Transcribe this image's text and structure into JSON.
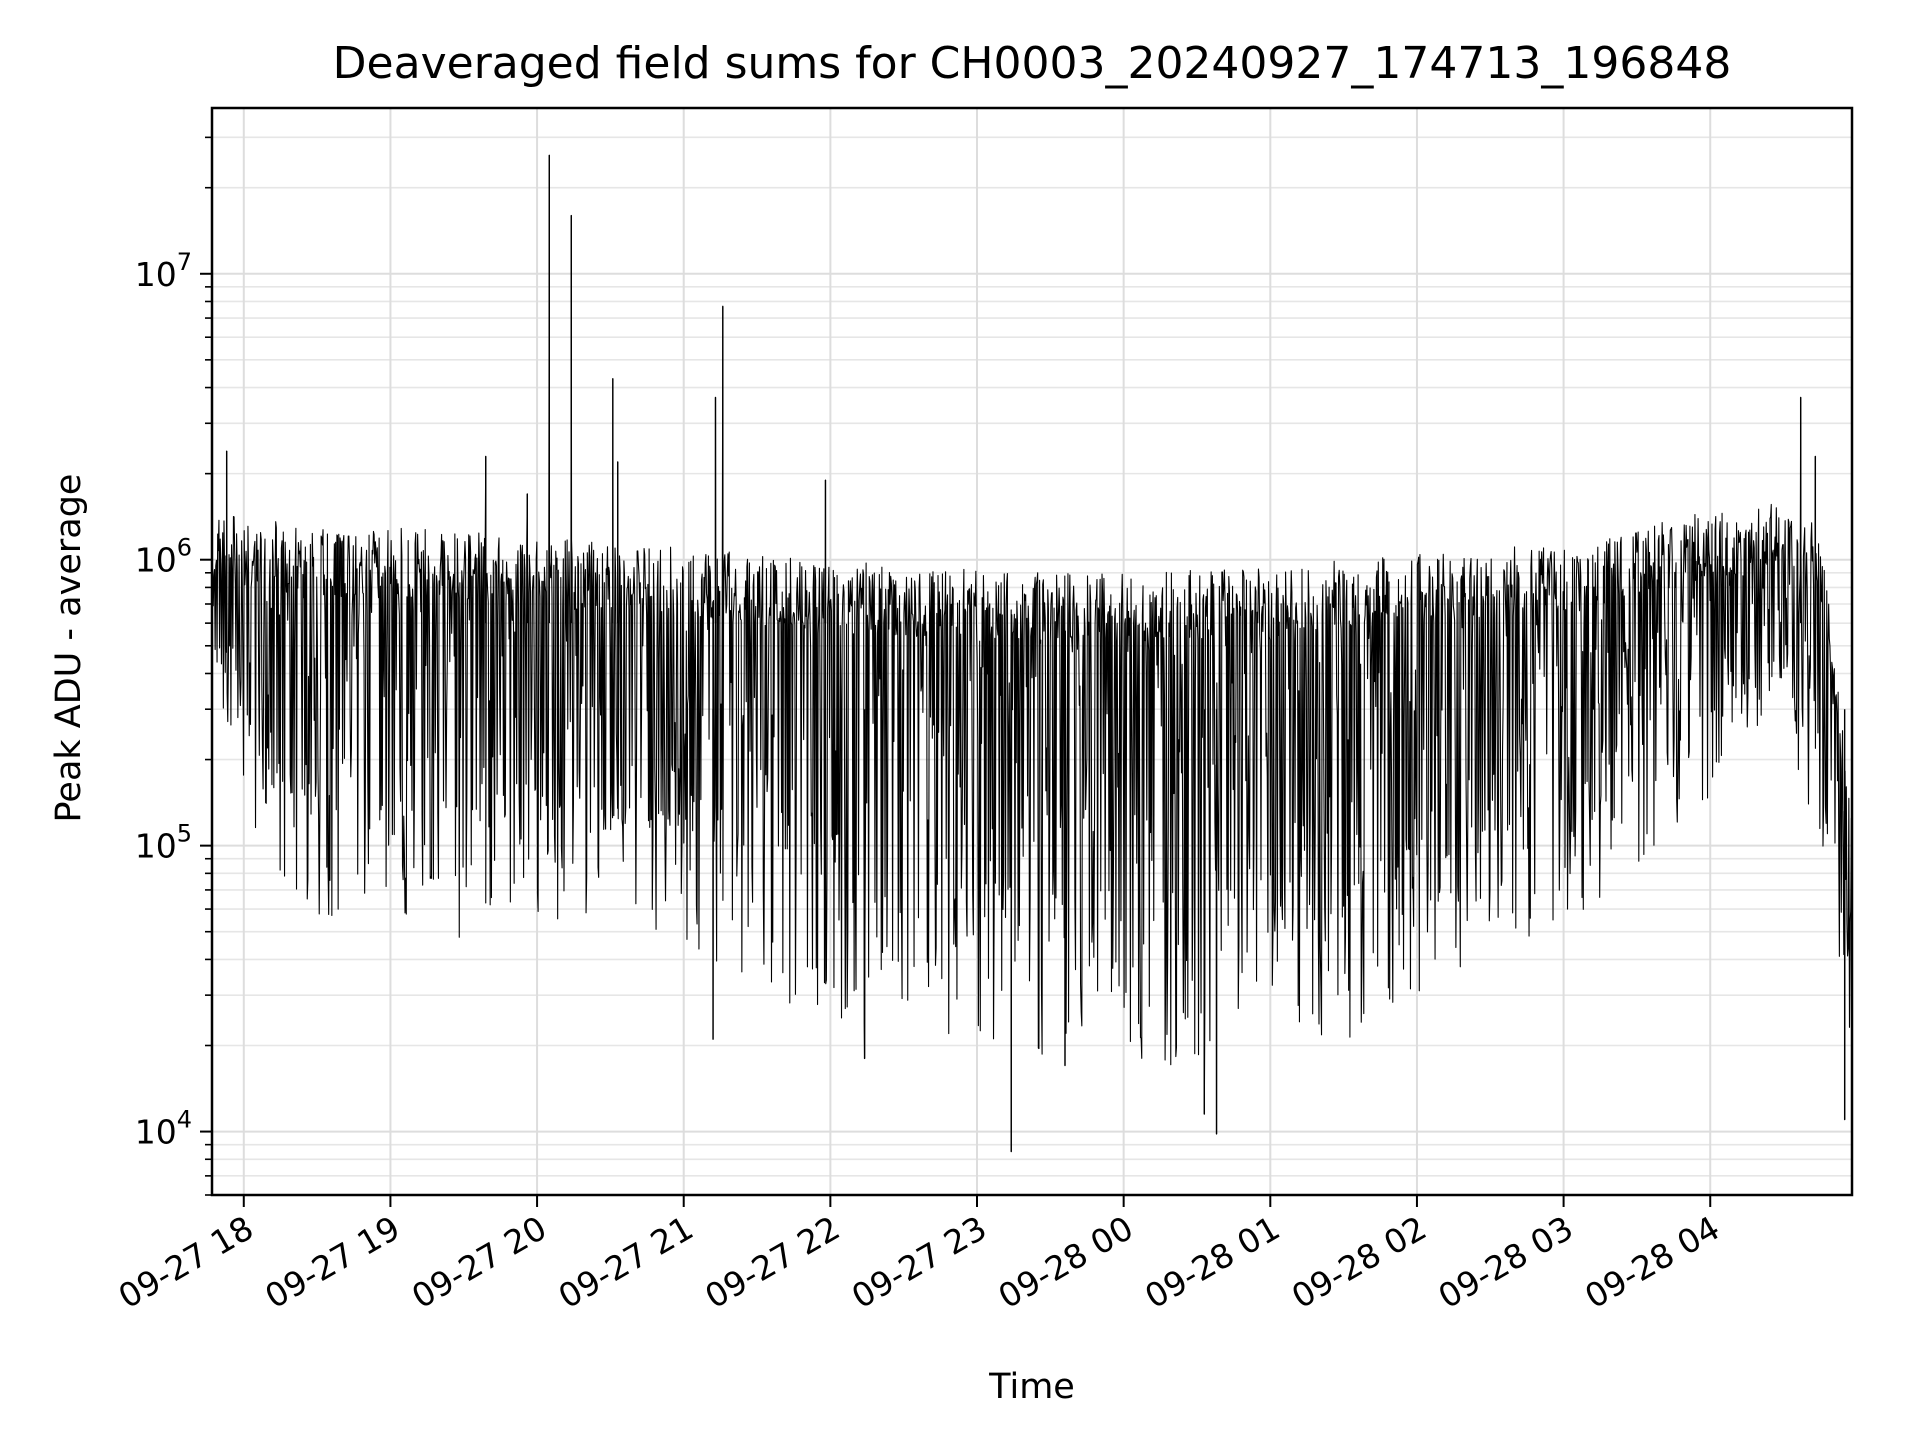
{
  "chart_data": {
    "type": "line",
    "title": "Deaveraged field sums for CH0003_20240927_174713_196848",
    "xlabel": "Time",
    "ylabel": "Peak ADU - average",
    "yscale": "log",
    "ylim": [
      6000,
      38000000
    ],
    "xlim": [
      "2024-09-27 17:47",
      "2024-09-28 04:58"
    ],
    "grid": true,
    "line_color": "#000000",
    "x_ticks": [
      {
        "value": "2024-09-27 18:00",
        "label": "09-27 18"
      },
      {
        "value": "2024-09-27 19:00",
        "label": "09-27 19"
      },
      {
        "value": "2024-09-27 20:00",
        "label": "09-27 20"
      },
      {
        "value": "2024-09-27 21:00",
        "label": "09-27 21"
      },
      {
        "value": "2024-09-27 22:00",
        "label": "09-27 22"
      },
      {
        "value": "2024-09-27 23:00",
        "label": "09-27 23"
      },
      {
        "value": "2024-09-28 00:00",
        "label": "09-28 00"
      },
      {
        "value": "2024-09-28 01:00",
        "label": "09-28 01"
      },
      {
        "value": "2024-09-28 02:00",
        "label": "09-28 02"
      },
      {
        "value": "2024-09-28 03:00",
        "label": "09-28 03"
      },
      {
        "value": "2024-09-28 04:00",
        "label": "09-28 04"
      }
    ],
    "y_ticks": [
      {
        "value": 10000,
        "base": "10",
        "exp": "4"
      },
      {
        "value": 100000,
        "base": "10",
        "exp": "5"
      },
      {
        "value": 1000000,
        "base": "10",
        "exp": "6"
      },
      {
        "value": 10000000,
        "base": "10",
        "exp": "7"
      }
    ],
    "upper_envelope": [
      [
        "2024-09-27 17:47",
        1500000
      ],
      [
        "2024-09-27 18:00",
        1400000
      ],
      [
        "2024-09-27 18:20",
        1350000
      ],
      [
        "2024-09-27 18:40",
        1300000
      ],
      [
        "2024-09-27 19:00",
        1300000
      ],
      [
        "2024-09-27 19:30",
        1250000
      ],
      [
        "2024-09-27 20:00",
        1200000
      ],
      [
        "2024-09-27 20:30",
        1150000
      ],
      [
        "2024-09-27 21:00",
        1100000
      ],
      [
        "2024-09-27 21:30",
        1050000
      ],
      [
        "2024-09-27 22:00",
        1000000
      ],
      [
        "2024-09-27 22:30",
        950000
      ],
      [
        "2024-09-27 23:00",
        920000
      ],
      [
        "2024-09-27 23:30",
        900000
      ],
      [
        "2024-09-28 00:00",
        900000
      ],
      [
        "2024-09-28 00:30",
        920000
      ],
      [
        "2024-09-28 01:00",
        950000
      ],
      [
        "2024-09-28 01:30",
        1000000
      ],
      [
        "2024-09-28 02:00",
        1050000
      ],
      [
        "2024-09-28 02:30",
        1100000
      ],
      [
        "2024-09-28 03:00",
        1150000
      ],
      [
        "2024-09-28 03:30",
        1300000
      ],
      [
        "2024-09-28 04:00",
        1500000
      ],
      [
        "2024-09-28 04:30",
        1600000
      ],
      [
        "2024-09-28 04:45",
        1300000
      ],
      [
        "2024-09-28 04:58",
        150000
      ]
    ],
    "lower_envelope": [
      [
        "2024-09-27 17:47",
        500000
      ],
      [
        "2024-09-27 18:00",
        120000
      ],
      [
        "2024-09-27 18:30",
        50000
      ],
      [
        "2024-09-27 19:00",
        60000
      ],
      [
        "2024-09-27 19:30",
        45000
      ],
      [
        "2024-09-27 20:00",
        50000
      ],
      [
        "2024-09-27 20:30",
        50000
      ],
      [
        "2024-09-27 21:00",
        45000
      ],
      [
        "2024-09-27 21:30",
        30000
      ],
      [
        "2024-09-27 22:00",
        25000
      ],
      [
        "2024-09-27 22:30",
        22000
      ],
      [
        "2024-09-27 23:00",
        20000
      ],
      [
        "2024-09-27 23:30",
        18000
      ],
      [
        "2024-09-28 00:00",
        17000
      ],
      [
        "2024-09-28 00:30",
        17000
      ],
      [
        "2024-09-28 01:00",
        20000
      ],
      [
        "2024-09-28 01:30",
        20000
      ],
      [
        "2024-09-28 02:00",
        30000
      ],
      [
        "2024-09-28 02:30",
        40000
      ],
      [
        "2024-09-28 03:00",
        50000
      ],
      [
        "2024-09-28 03:30",
        80000
      ],
      [
        "2024-09-28 04:00",
        150000
      ],
      [
        "2024-09-28 04:30",
        300000
      ],
      [
        "2024-09-28 04:58",
        20000
      ]
    ],
    "spikes": [
      [
        "2024-09-27 17:53",
        2400000
      ],
      [
        "2024-09-27 19:39",
        2300000
      ],
      [
        "2024-09-27 19:56",
        1700000
      ],
      [
        "2024-09-27 20:05",
        26000000
      ],
      [
        "2024-09-27 20:14",
        16000000
      ],
      [
        "2024-09-27 20:31",
        4300000
      ],
      [
        "2024-09-27 20:33",
        2200000
      ],
      [
        "2024-09-27 21:13",
        3700000
      ],
      [
        "2024-09-27 21:16",
        7700000
      ],
      [
        "2024-09-27 21:58",
        1900000
      ],
      [
        "2024-09-28 04:37",
        3700000
      ],
      [
        "2024-09-28 04:43",
        2300000
      ]
    ],
    "dips": [
      [
        "2024-09-27 21:12",
        21000
      ],
      [
        "2024-09-27 22:14",
        18000
      ],
      [
        "2024-09-27 23:14",
        8500
      ],
      [
        "2024-09-27 23:36",
        17000
      ],
      [
        "2024-09-28 00:33",
        11500
      ],
      [
        "2024-09-28 00:38",
        9800
      ],
      [
        "2024-09-28 04:55",
        11000
      ]
    ]
  }
}
